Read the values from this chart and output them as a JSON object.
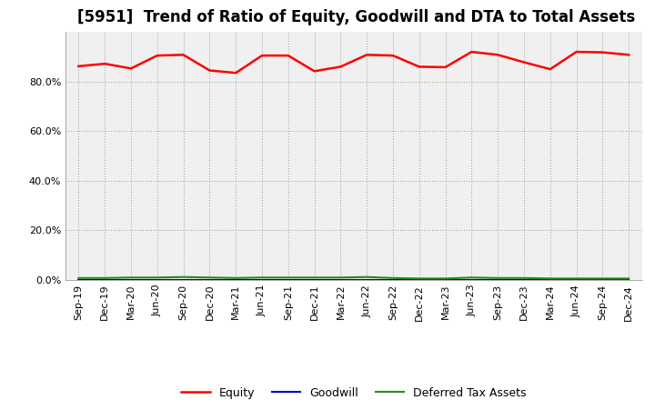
{
  "title": "[5951]  Trend of Ratio of Equity, Goodwill and DTA to Total Assets",
  "x_labels": [
    "Sep-19",
    "Dec-19",
    "Mar-20",
    "Jun-20",
    "Sep-20",
    "Dec-20",
    "Mar-21",
    "Jun-21",
    "Sep-21",
    "Dec-21",
    "Mar-22",
    "Jun-22",
    "Sep-22",
    "Dec-22",
    "Mar-23",
    "Jun-23",
    "Sep-23",
    "Dec-23",
    "Mar-24",
    "Jun-24",
    "Sep-24",
    "Dec-24"
  ],
  "equity": [
    0.862,
    0.872,
    0.853,
    0.905,
    0.908,
    0.845,
    0.835,
    0.905,
    0.905,
    0.842,
    0.86,
    0.908,
    0.905,
    0.86,
    0.858,
    0.92,
    0.908,
    0.878,
    0.85,
    0.92,
    0.918,
    0.908
  ],
  "goodwill": [
    0.0,
    0.0,
    0.0,
    0.0,
    0.0,
    0.0,
    0.0,
    0.0,
    0.0,
    0.0,
    0.0,
    0.0,
    0.0,
    0.0,
    0.0,
    0.0,
    0.0,
    0.0,
    0.0,
    0.0,
    0.0,
    0.0
  ],
  "dta": [
    0.008,
    0.008,
    0.01,
    0.01,
    0.012,
    0.01,
    0.008,
    0.01,
    0.01,
    0.01,
    0.01,
    0.012,
    0.008,
    0.006,
    0.006,
    0.01,
    0.008,
    0.008,
    0.006,
    0.006,
    0.006,
    0.006
  ],
  "equity_color": "#ff0000",
  "goodwill_color": "#0000cc",
  "dta_color": "#228b22",
  "ylim": [
    0.0,
    1.0
  ],
  "yticks": [
    0.0,
    0.2,
    0.4,
    0.6,
    0.8
  ],
  "background_color": "#ffffff",
  "plot_bg_color": "#f0f0f0",
  "grid_color": "#999999",
  "title_fontsize": 12,
  "legend_labels": [
    "Equity",
    "Goodwill",
    "Deferred Tax Assets"
  ]
}
